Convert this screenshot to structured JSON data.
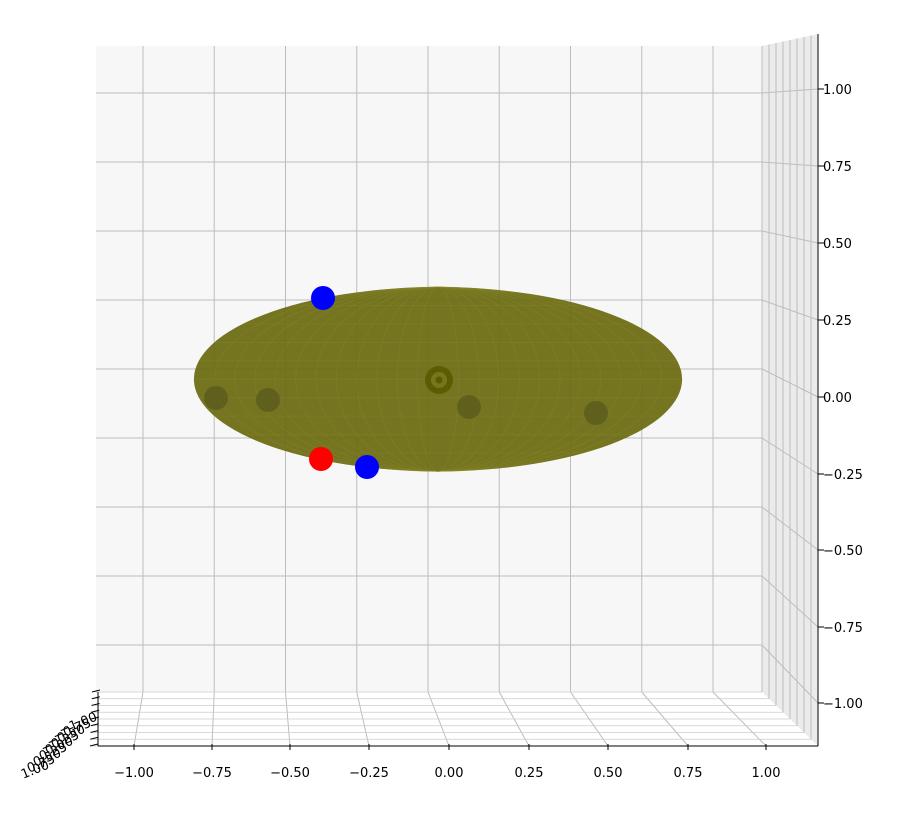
{
  "chart_data": {
    "type": "scatter",
    "projection": "3d",
    "title": "",
    "xlabel": "",
    "ylabel": "",
    "zlabel": "",
    "xlim": [
      -1.15,
      1.15
    ],
    "ylim": [
      -1.0,
      1.0
    ],
    "zlim": [
      -1.15,
      1.15
    ],
    "grid": true,
    "x_ticks": [
      "−1.00",
      "−0.75",
      "−0.50",
      "−0.25",
      "0.00",
      "0.25",
      "0.50",
      "0.75",
      "1.00"
    ],
    "z_ticks": [
      "1.00",
      "0.75",
      "0.50",
      "0.25",
      "0.00",
      "−0.25",
      "−0.50",
      "−0.75",
      "−1.00"
    ],
    "y_ticks": [
      "−1.00",
      "−0.75",
      "−0.50",
      "−0.25",
      "0.00",
      "0.25",
      "0.50",
      "0.75",
      "1.00"
    ],
    "surface": {
      "shape": "ellipsoid",
      "color": "#6b6b10",
      "center": {
        "x": 0.0,
        "z": 0.05
      },
      "radius_x": 0.77,
      "radius_z": 0.3
    },
    "points": [
      {
        "x": -0.42,
        "z": 0.28,
        "color": "#0000ff",
        "occluded": false
      },
      {
        "x": -0.42,
        "z": -0.21,
        "color": "#ff0000",
        "occluded": false
      },
      {
        "x": -0.27,
        "z": -0.23,
        "color": "#0000ff",
        "occluded": false
      },
      {
        "x": -0.75,
        "z": 0.0,
        "color": "#5a5a1e",
        "occluded": true
      },
      {
        "x": -0.58,
        "z": -0.01,
        "color": "#5a5a1e",
        "occluded": true
      },
      {
        "x": 0.06,
        "z": -0.03,
        "color": "#5a5a1e",
        "occluded": true
      },
      {
        "x": 0.47,
        "z": -0.05,
        "color": "#5a5a1e",
        "occluded": true
      }
    ],
    "center_marker": {
      "x": 0.0,
      "z": 0.05,
      "color": "#5a5a00"
    }
  }
}
